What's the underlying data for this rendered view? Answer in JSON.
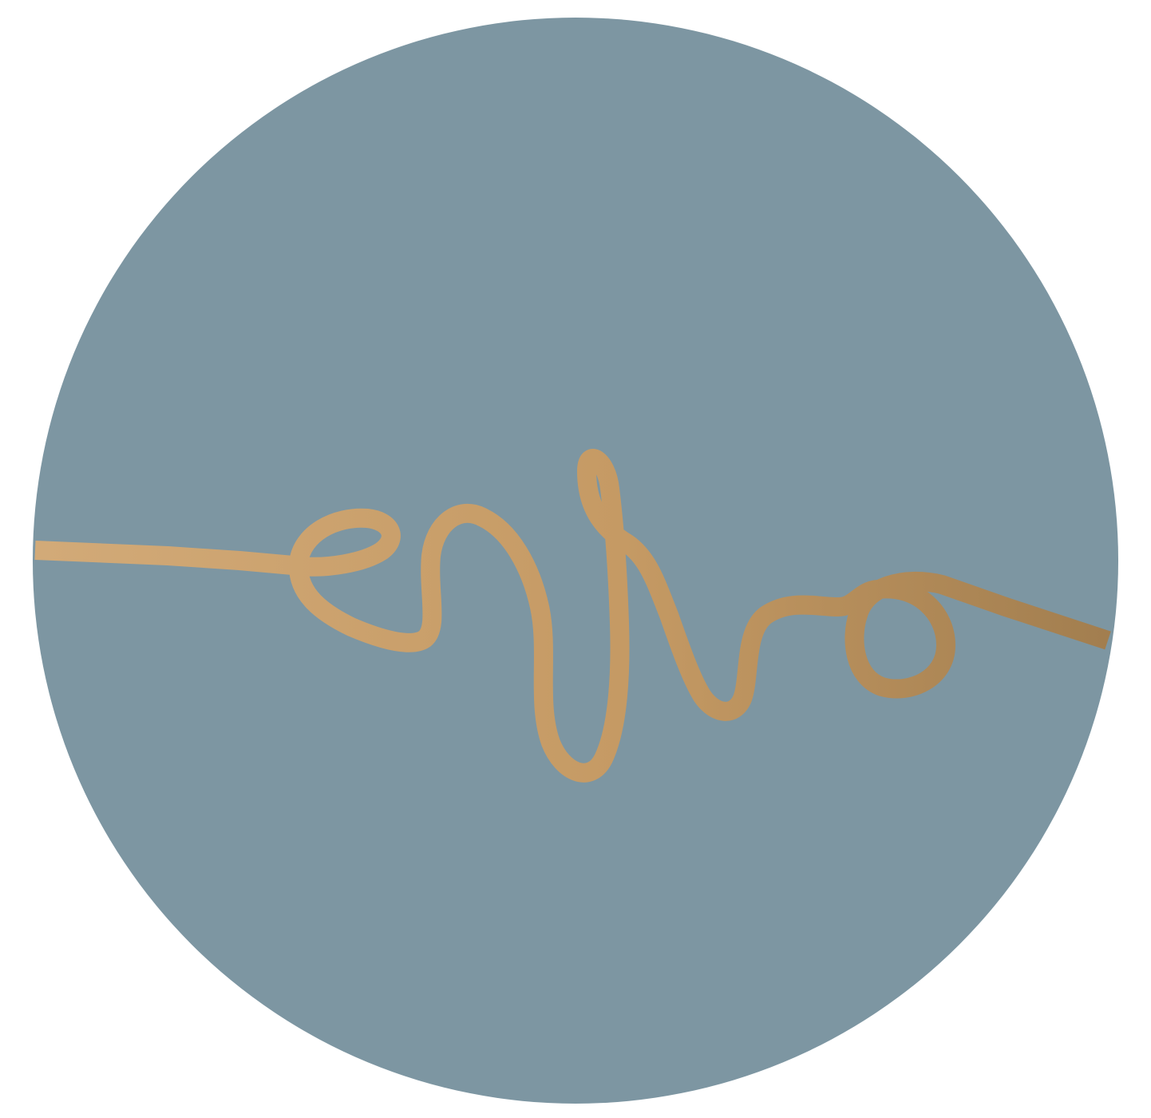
{
  "logo": {
    "name": "wave-line-mark",
    "disc_color": "#7d96a2",
    "stroke_color_light": "#d2aa78",
    "stroke_color_dark": "#a27e4f",
    "background_color": "#ffffff"
  }
}
